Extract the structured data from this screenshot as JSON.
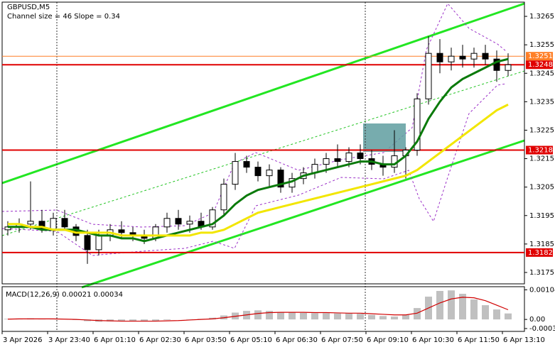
{
  "chart_data": {
    "type": "candlestick",
    "title": "GBPUSD,M5",
    "subtitle": "Channel size = 46 Slope = 0.34",
    "xlabels": [
      "3 Apr 2026",
      "3 Apr 23:40",
      "6 Apr 01:10",
      "6 Apr 02:30",
      "6 Apr 03:50",
      "6 Apr 05:10",
      "6 Apr 06:30",
      "6 Apr 07:50",
      "6 Apr 09:10",
      "6 Apr 10:30",
      "6 Apr 11:50",
      "6 Apr 13:10"
    ],
    "open": [
      1.319,
      1.3191,
      1.3192,
      1.3193,
      1.319,
      1.3194,
      1.3191,
      1.3188,
      1.3183,
      1.3188,
      1.319,
      1.3189,
      1.3188,
      1.3187,
      1.3191,
      1.3194,
      1.3192,
      1.3193,
      1.3191,
      1.3197,
      1.3206,
      1.3214,
      1.3212,
      1.3209,
      1.3211,
      1.3205,
      1.3208,
      1.321,
      1.3213,
      1.3215,
      1.3214,
      1.3217,
      1.3215,
      1.3213,
      1.3212,
      1.3216,
      1.3218,
      1.3236,
      1.3252,
      1.3249,
      1.3251,
      1.325,
      1.3252,
      1.325,
      1.3246
    ],
    "high": [
      1.3193,
      1.3194,
      1.3207,
      1.3197,
      1.3196,
      1.3197,
      1.3192,
      1.319,
      1.319,
      1.3192,
      1.3193,
      1.3191,
      1.319,
      1.3192,
      1.3196,
      1.3197,
      1.3195,
      1.3196,
      1.3198,
      1.3208,
      1.3217,
      1.3216,
      1.3214,
      1.3213,
      1.3212,
      1.321,
      1.3212,
      1.3215,
      1.3217,
      1.322,
      1.3219,
      1.322,
      1.3218,
      1.3216,
      1.3225,
      1.3219,
      1.3238,
      1.3258,
      1.3257,
      1.3254,
      1.3255,
      1.3254,
      1.3255,
      1.3253,
      1.3252
    ],
    "low": [
      1.3188,
      1.3189,
      1.319,
      1.3189,
      1.3188,
      1.319,
      1.3186,
      1.3178,
      1.3181,
      1.3186,
      1.3187,
      1.3186,
      1.3185,
      1.3186,
      1.3189,
      1.319,
      1.3189,
      1.319,
      1.319,
      1.3195,
      1.3204,
      1.321,
      1.3207,
      1.3205,
      1.3203,
      1.3203,
      1.3206,
      1.3208,
      1.321,
      1.3212,
      1.3212,
      1.3213,
      1.3211,
      1.3209,
      1.321,
      1.3208,
      1.3216,
      1.3234,
      1.3245,
      1.3246,
      1.3247,
      1.3247,
      1.3248,
      1.3242,
      1.3244
    ],
    "close": [
      1.3191,
      1.3192,
      1.3193,
      1.319,
      1.3194,
      1.3191,
      1.3188,
      1.3183,
      1.3188,
      1.319,
      1.3189,
      1.3188,
      1.3187,
      1.3191,
      1.3194,
      1.3192,
      1.3193,
      1.3191,
      1.3197,
      1.3206,
      1.3214,
      1.3212,
      1.3209,
      1.3211,
      1.3205,
      1.3208,
      1.321,
      1.3213,
      1.3215,
      1.3214,
      1.3217,
      1.3215,
      1.3213,
      1.3212,
      1.3216,
      1.3218,
      1.3236,
      1.3252,
      1.3249,
      1.3251,
      1.325,
      1.3252,
      1.325,
      1.3246,
      1.3248
    ],
    "series": [
      {
        "color": "#0a7a0a",
        "values": [
          1.3191,
          1.3191,
          1.3191,
          1.319,
          1.319,
          1.319,
          1.319,
          1.3189,
          1.3188,
          1.3188,
          1.3187,
          1.3187,
          1.3186,
          1.3187,
          1.3188,
          1.3189,
          1.319,
          1.3191,
          1.3192,
          1.3195,
          1.3199,
          1.3202,
          1.3204,
          1.3205,
          1.3206,
          1.3207,
          1.3209,
          1.321,
          1.3211,
          1.3212,
          1.3213,
          1.3214,
          1.3214,
          1.3213,
          1.3213,
          1.3216,
          1.3221,
          1.3229,
          1.3235,
          1.324,
          1.3243,
          1.3245,
          1.3247,
          1.3249,
          1.325
        ]
      },
      {
        "color": "#f2e600",
        "values": [
          1.3192,
          1.3192,
          1.3191,
          1.3191,
          1.319,
          1.319,
          1.3189,
          1.3189,
          1.3189,
          1.3189,
          1.3188,
          1.3188,
          1.3188,
          1.3188,
          1.3188,
          1.3188,
          1.3188,
          1.3189,
          1.3189,
          1.319,
          1.3192,
          1.3194,
          1.3196,
          1.3197,
          1.3198,
          1.3199,
          1.32,
          1.3201,
          1.3202,
          1.3203,
          1.3204,
          1.3205,
          1.3206,
          1.3207,
          1.3208,
          1.3209,
          1.3211,
          1.3214,
          1.3217,
          1.322,
          1.3223,
          1.3226,
          1.3229,
          1.3232,
          1.3234
        ]
      }
    ],
    "levels": [
      {
        "value": 1.3251,
        "color": "#ff7f27"
      },
      {
        "value": 1.3248,
        "color": "#e00000"
      },
      {
        "value": 1.3218,
        "color": "#e00000"
      },
      {
        "value": 1.3182,
        "color": "#e00000"
      }
    ],
    "ylim": [
      1.3171,
      1.327
    ],
    "yticks": [
      1.3265,
      1.3255,
      1.3245,
      1.3235,
      1.3225,
      1.3215,
      1.3205,
      1.3195,
      1.3185,
      1.3175
    ],
    "macd": {
      "title": "MACD(12,26,9) 0.00021 0.00034",
      "histogram": [
        2e-05,
        3e-05,
        4e-05,
        2e-05,
        1e-05,
        0,
        -2e-05,
        -6e-05,
        -8e-05,
        -7e-05,
        -6e-05,
        -6e-05,
        -7e-05,
        -5e-05,
        -2e-05,
        0,
        1e-05,
        2e-05,
        6e-05,
        0.00014,
        0.00024,
        0.0003,
        0.00032,
        0.0003,
        0.00026,
        0.00024,
        0.00023,
        0.00022,
        0.00022,
        0.00021,
        0.00021,
        0.0002,
        0.00016,
        0.00012,
        0.0001,
        0.00016,
        0.0004,
        0.0008,
        0.001,
        0.00102,
        0.0009,
        0.0007,
        0.0005,
        0.00035,
        0.00021
      ],
      "signal": [
        1e-05,
        2e-05,
        2e-05,
        2e-05,
        2e-05,
        1e-05,
        0,
        -2e-05,
        -4e-05,
        -5e-05,
        -6e-05,
        -6e-05,
        -6e-05,
        -6e-05,
        -5e-05,
        -4e-05,
        -2e-05,
        0,
        2e-05,
        6e-05,
        0.00011,
        0.00016,
        0.00021,
        0.00024,
        0.00025,
        0.00025,
        0.00025,
        0.00024,
        0.00024,
        0.00023,
        0.00022,
        0.00022,
        0.0002,
        0.00018,
        0.00016,
        0.00016,
        0.00022,
        0.0004,
        0.00058,
        0.00072,
        0.00078,
        0.00076,
        0.00066,
        0.0005,
        0.00034
      ],
      "histogram_color": "#c0c0c0",
      "signal_color": "#d00000",
      "ylim": [
        -0.00042,
        0.00115
      ],
      "yticks": [
        0.00104,
        {
          "value": 0,
          "label": "0.00"
        },
        -0.00032
      ]
    }
  }
}
